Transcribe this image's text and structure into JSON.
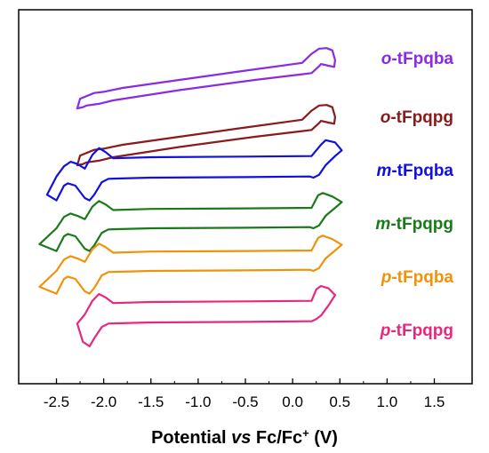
{
  "chart_data": {
    "type": "line",
    "title": "",
    "ylabel": "",
    "xlabel": {
      "prefix": "Potential ",
      "italic": "vs",
      "middle": " Fc/Fc",
      "sup": "+",
      "suffix": " (V)"
    },
    "xlim": [
      -2.9,
      1.9
    ],
    "xticks": [
      {
        "v": -2.5,
        "label": "-2.5"
      },
      {
        "v": -2.0,
        "label": "-2.0"
      },
      {
        "v": -1.5,
        "label": "-1.5"
      },
      {
        "v": -1.0,
        "label": "-1.0"
      },
      {
        "v": -0.5,
        "label": "-0.5"
      },
      {
        "v": 0.0,
        "label": "0.0"
      },
      {
        "v": 0.5,
        "label": "0.5"
      },
      {
        "v": 1.0,
        "label": "1.0"
      },
      {
        "v": 1.5,
        "label": "1.5"
      }
    ],
    "grid": false,
    "legend_position": "right of each curve",
    "series": [
      {
        "prefix": "o",
        "name": "-tFpqba",
        "color": "#8a2be2",
        "offset": 0,
        "x": [
          -2.28,
          -2.25,
          -2.1,
          -2.0,
          -1.8,
          -1.2,
          -0.6,
          0.1,
          0.2,
          0.28,
          0.36,
          0.42,
          0.45,
          0.44,
          0.38,
          0.3,
          0.28,
          0.2,
          0.1,
          -0.4,
          -1.2,
          -1.9,
          -2.05,
          -2.18,
          -2.22,
          -2.28
        ],
        "y": [
          0.0,
          0.17,
          0.27,
          0.29,
          0.36,
          0.5,
          0.64,
          0.8,
          0.96,
          1.05,
          1.06,
          1.02,
          0.85,
          0.73,
          0.75,
          0.78,
          0.74,
          0.62,
          0.6,
          0.5,
          0.32,
          0.14,
          0.08,
          0.05,
          0.02,
          0.0
        ]
      },
      {
        "prefix": "o",
        "name": "-tFpqpg",
        "color": "#8b1a1a",
        "offset": 0,
        "x": [
          -2.28,
          -2.25,
          -2.1,
          -2.0,
          -1.8,
          -1.2,
          -0.6,
          0.1,
          0.2,
          0.28,
          0.36,
          0.42,
          0.45,
          0.44,
          0.38,
          0.3,
          0.28,
          0.2,
          0.1,
          -0.4,
          -1.2,
          -1.9,
          -2.05,
          -2.18,
          -2.22,
          -2.28
        ],
        "y": [
          0.0,
          0.17,
          0.27,
          0.29,
          0.36,
          0.5,
          0.64,
          0.8,
          0.96,
          1.05,
          1.06,
          1.02,
          0.85,
          0.73,
          0.75,
          0.78,
          0.74,
          0.62,
          0.6,
          0.5,
          0.32,
          0.14,
          0.08,
          0.05,
          0.02,
          0.0
        ]
      },
      {
        "prefix": "m",
        "name": "-tFpqba",
        "color": "#1010e0",
        "offset": 0,
        "x": [
          -2.6,
          -2.5,
          -2.42,
          -2.35,
          -2.28,
          -2.2,
          -2.12,
          -2.05,
          -1.98,
          -1.9,
          -1.5,
          -0.5,
          0.2,
          0.3,
          0.35,
          0.45,
          0.52,
          0.45,
          0.35,
          0.28,
          0.22,
          0.18,
          -0.5,
          -1.5,
          -1.95,
          -2.02,
          -2.1,
          -2.15,
          -2.2,
          -2.3,
          -2.38,
          -2.42,
          -2.5,
          -2.6
        ],
        "y": [
          0.2,
          0.52,
          0.7,
          0.78,
          0.74,
          0.66,
          0.9,
          1.02,
          0.95,
          0.84,
          0.86,
          0.87,
          0.88,
          1.08,
          1.16,
          1.12,
          0.98,
          0.88,
          0.72,
          0.55,
          0.5,
          0.52,
          0.51,
          0.5,
          0.48,
          0.42,
          0.2,
          0.1,
          0.14,
          0.36,
          0.4,
          0.36,
          0.1,
          0.2
        ]
      },
      {
        "prefix": "m",
        "name": "-tFpqpg",
        "color": "#1a7a1a",
        "offset": 0,
        "x": [
          -2.68,
          -2.5,
          -2.42,
          -2.35,
          -2.28,
          -2.2,
          -2.12,
          -2.05,
          -1.98,
          -1.9,
          -1.5,
          -0.5,
          0.2,
          0.27,
          0.32,
          0.42,
          0.52,
          0.45,
          0.35,
          0.28,
          0.22,
          0.18,
          -0.5,
          -1.5,
          -1.95,
          -2.02,
          -2.1,
          -2.15,
          -2.2,
          -2.3,
          -2.38,
          -2.42,
          -2.5,
          -2.68
        ],
        "y": [
          0.22,
          0.5,
          0.7,
          0.76,
          0.72,
          0.66,
          0.88,
          0.98,
          0.92,
          0.82,
          0.84,
          0.85,
          0.86,
          1.08,
          1.12,
          1.06,
          0.96,
          0.86,
          0.72,
          0.55,
          0.5,
          0.52,
          0.51,
          0.5,
          0.48,
          0.42,
          0.2,
          0.1,
          0.14,
          0.36,
          0.4,
          0.36,
          0.1,
          0.22
        ]
      },
      {
        "prefix": "p",
        "name": "-tFpqba",
        "color": "#f0920a",
        "offset": 0,
        "x": [
          -2.68,
          -2.5,
          -2.42,
          -2.35,
          -2.28,
          -2.2,
          -2.12,
          -2.05,
          -1.98,
          -1.9,
          -1.5,
          -0.5,
          0.2,
          0.27,
          0.32,
          0.42,
          0.52,
          0.45,
          0.35,
          0.28,
          0.22,
          0.18,
          -0.5,
          -1.5,
          -1.95,
          -2.02,
          -2.1,
          -2.15,
          -2.2,
          -2.3,
          -2.38,
          -2.42,
          -2.5,
          -2.68
        ],
        "y": [
          0.22,
          0.5,
          0.7,
          0.76,
          0.72,
          0.66,
          0.88,
          0.98,
          0.92,
          0.82,
          0.84,
          0.85,
          0.86,
          1.08,
          1.12,
          1.06,
          0.96,
          0.86,
          0.72,
          0.55,
          0.5,
          0.52,
          0.51,
          0.5,
          0.48,
          0.42,
          0.2,
          0.1,
          0.14,
          0.36,
          0.4,
          0.36,
          0.1,
          0.22
        ]
      },
      {
        "prefix": "p",
        "name": "-tFpqpg",
        "color": "#e8287e",
        "offset": 0,
        "x": [
          -2.28,
          -2.2,
          -2.12,
          -2.05,
          -1.98,
          -1.9,
          -1.5,
          -0.5,
          0.2,
          0.25,
          0.3,
          0.38,
          0.45,
          0.38,
          0.3,
          0.25,
          0.2,
          0.15,
          -0.5,
          -1.5,
          -1.95,
          -2.02,
          -2.1,
          -2.15,
          -2.22,
          -2.28
        ],
        "y": [
          0.48,
          0.64,
          0.88,
          1.0,
          0.94,
          0.84,
          0.86,
          0.87,
          0.88,
          1.08,
          1.14,
          1.1,
          0.98,
          0.8,
          0.62,
          0.56,
          0.52,
          0.52,
          0.51,
          0.5,
          0.48,
          0.42,
          0.22,
          0.08,
          0.16,
          0.48
        ]
      }
    ]
  }
}
